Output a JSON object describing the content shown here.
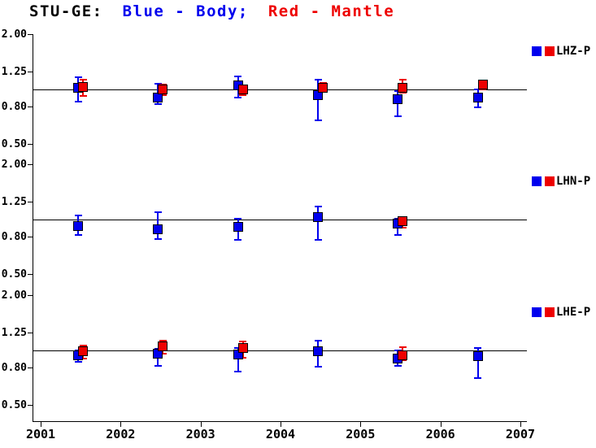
{
  "colors": {
    "blue": "#0000EE",
    "red": "#EE0000",
    "axis": "#000000"
  },
  "chart_data": {
    "type": "scatter",
    "title_parts": [
      {
        "text": "STU-GE:",
        "color": "axis"
      },
      {
        "text": "Blue - Body;",
        "color": "blue"
      },
      {
        "text": "Red - Mantle",
        "color": "red"
      }
    ],
    "x_axis": {
      "min": 2001,
      "max": 2007,
      "ticks": [
        2001,
        2002,
        2003,
        2004,
        2005,
        2006,
        2007
      ],
      "tick_labels": [
        "2001",
        "2002",
        "2003",
        "2004",
        "2005",
        "2006",
        "2007"
      ]
    },
    "y_axis": {
      "scale": "log",
      "min": 0.5,
      "max": 2.0,
      "tick_values": [
        2.0,
        1.25,
        0.8,
        0.5
      ],
      "tick_labels": [
        "2.00",
        "1.25",
        "0.80",
        "0.50"
      ]
    },
    "reference_value": 1.0,
    "grid": false,
    "legend_position": "right-of-panel",
    "panels": [
      {
        "label": "LHZ-P",
        "series": [
          {
            "name": "Body",
            "color": "blue",
            "points": [
              {
                "x": 2001.5,
                "v": 1.02,
                "lo": 0.85,
                "hi": 1.16
              },
              {
                "x": 2002.5,
                "v": 0.9,
                "lo": 0.83,
                "hi": 1.07
              },
              {
                "x": 2003.5,
                "v": 1.05,
                "lo": 0.9,
                "hi": 1.17
              },
              {
                "x": 2004.5,
                "v": 0.93,
                "lo": 0.67,
                "hi": 1.13
              },
              {
                "x": 2005.5,
                "v": 0.88,
                "lo": 0.71,
                "hi": 0.97
              },
              {
                "x": 2006.5,
                "v": 0.9,
                "lo": 0.79,
                "hi": 0.99
              }
            ]
          },
          {
            "name": "Mantle",
            "color": "red",
            "points": [
              {
                "x": 2001.5,
                "v": 1.03,
                "lo": 0.92,
                "hi": 1.12
              },
              {
                "x": 2002.5,
                "v": 0.99,
                "lo": 0.93,
                "hi": 1.06
              },
              {
                "x": 2003.5,
                "v": 0.99,
                "lo": 0.93,
                "hi": 1.05
              },
              {
                "x": 2004.5,
                "v": 1.02,
                "lo": 0.97,
                "hi": 1.08
              },
              {
                "x": 2005.5,
                "v": 1.02,
                "lo": 0.95,
                "hi": 1.13
              },
              {
                "x": 2006.5,
                "v": 1.06,
                "lo": 1.0,
                "hi": 1.11
              }
            ]
          }
        ]
      },
      {
        "label": "LHN-P",
        "series": [
          {
            "name": "Body",
            "color": "blue",
            "points": [
              {
                "x": 2001.5,
                "v": 0.92,
                "lo": 0.82,
                "hi": 1.05
              },
              {
                "x": 2002.5,
                "v": 0.88,
                "lo": 0.78,
                "hi": 1.09
              },
              {
                "x": 2003.5,
                "v": 0.91,
                "lo": 0.77,
                "hi": 1.01
              },
              {
                "x": 2004.5,
                "v": 1.03,
                "lo": 0.77,
                "hi": 1.17
              },
              {
                "x": 2005.5,
                "v": 0.945,
                "lo": 0.82,
                "hi": 1.01
              }
            ]
          },
          {
            "name": "Mantle",
            "color": "red",
            "points": [
              {
                "x": 2005.5,
                "v": 0.975,
                "lo": 0.9,
                "hi": 1.03
              }
            ]
          }
        ]
      },
      {
        "label": "LHE-P",
        "series": [
          {
            "name": "Body",
            "color": "blue",
            "points": [
              {
                "x": 2001.5,
                "v": 0.94,
                "lo": 0.86,
                "hi": 1.0
              },
              {
                "x": 2002.5,
                "v": 0.955,
                "lo": 0.82,
                "hi": 1.02
              },
              {
                "x": 2003.5,
                "v": 0.945,
                "lo": 0.76,
                "hi": 1.03
              },
              {
                "x": 2004.5,
                "v": 0.98,
                "lo": 0.81,
                "hi": 1.12
              },
              {
                "x": 2005.5,
                "v": 0.9,
                "lo": 0.82,
                "hi": 0.99
              },
              {
                "x": 2006.5,
                "v": 0.93,
                "lo": 0.7,
                "hi": 1.03
              }
            ]
          },
          {
            "name": "Mantle",
            "color": "red",
            "points": [
              {
                "x": 2001.5,
                "v": 0.98,
                "lo": 0.9,
                "hi": 1.06
              },
              {
                "x": 2002.5,
                "v": 1.05,
                "lo": 0.95,
                "hi": 1.12
              },
              {
                "x": 2003.5,
                "v": 1.03,
                "lo": 0.91,
                "hi": 1.11
              },
              {
                "x": 2005.5,
                "v": 0.935,
                "lo": 0.88,
                "hi": 1.04
              }
            ]
          }
        ]
      }
    ]
  }
}
